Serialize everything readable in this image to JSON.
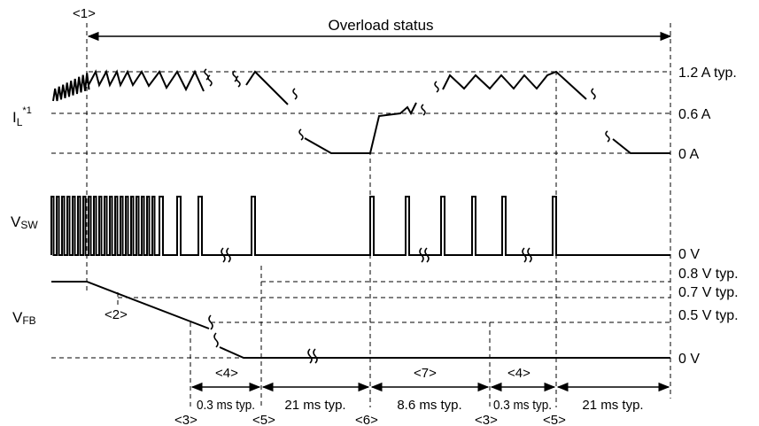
{
  "title": "Overload status",
  "markers": {
    "m1": "<1>",
    "m2": "<2>",
    "m3a": "<3>",
    "m3b": "<3>",
    "m4a": "<4>",
    "m4b": "<4>",
    "m5a": "<5>",
    "m5b": "<5>",
    "m6": "<6>",
    "m7": "<7>"
  },
  "signals": {
    "il_main": "I",
    "il_sub": "L",
    "il_note": "*1",
    "vsw_main": "V",
    "vsw_sub": "SW",
    "vfb_main": "V",
    "vfb_sub": "FB"
  },
  "levels": {
    "il_high": "1.2 A typ.",
    "il_mid": "0.6 A",
    "il_zero": "0 A",
    "vsw_zero": "0 V",
    "vfb_08": "0.8 V typ.",
    "vfb_07": "0.7 V typ.",
    "vfb_05": "0.5 V typ.",
    "vfb_zero": "0 V"
  },
  "durations": {
    "d1": "0.3 ms typ.",
    "d2": "21 ms typ.",
    "d3": "8.6 ms typ.",
    "d4": "0.3 ms typ.",
    "d5": "21 ms typ."
  }
}
